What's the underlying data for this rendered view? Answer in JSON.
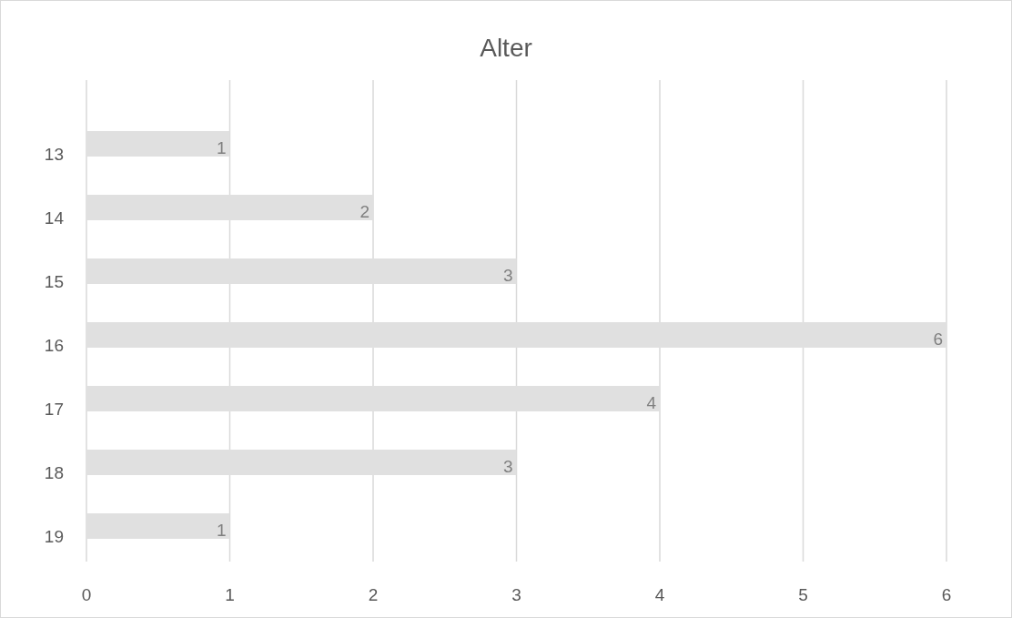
{
  "chart_data": {
    "type": "bar",
    "title": "Alter",
    "orientation": "horizontal",
    "categories": [
      "13",
      "14",
      "15",
      "16",
      "17",
      "18",
      "19"
    ],
    "values": [
      1,
      2,
      3,
      6,
      4,
      3,
      1
    ],
    "color": "#e0e0e0",
    "xlim": [
      0,
      6
    ],
    "xticks": [
      0,
      1,
      2,
      3,
      4,
      5,
      6
    ],
    "grid": "x",
    "data_labels": true
  }
}
